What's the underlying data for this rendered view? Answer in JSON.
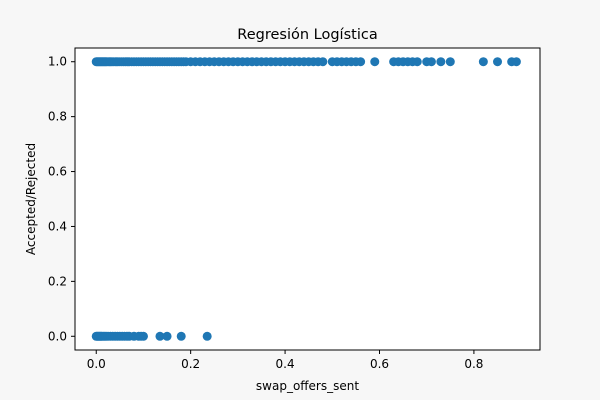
{
  "chart_data": {
    "type": "scatter",
    "title": "Regresión Logística",
    "xlabel": "swap_offers_sent",
    "ylabel": "Accepted/Rejected",
    "xlim": [
      -0.045,
      0.94
    ],
    "ylim": [
      -0.05,
      1.05
    ],
    "xticks": [
      0.0,
      0.2,
      0.4,
      0.6,
      0.8
    ],
    "xtick_labels": [
      "0.0",
      "0.2",
      "0.4",
      "0.6",
      "0.8"
    ],
    "yticks": [
      0.0,
      0.2,
      0.4,
      0.6,
      0.8,
      1.0
    ],
    "ytick_labels": [
      "0.0",
      "0.2",
      "0.4",
      "0.6",
      "0.8",
      "1.0"
    ],
    "grid": false,
    "point_color": "#1f77b4",
    "x": [
      0.0,
      0.002,
      0.004,
      0.006,
      0.008,
      0.01,
      0.012,
      0.014,
      0.016,
      0.018,
      0.02,
      0.022,
      0.025,
      0.028,
      0.03,
      0.033,
      0.036,
      0.04,
      0.043,
      0.046,
      0.05,
      0.054,
      0.058,
      0.062,
      0.066,
      0.07,
      0.075,
      0.08,
      0.085,
      0.09,
      0.095,
      0.1,
      0.105,
      0.11,
      0.115,
      0.12,
      0.125,
      0.13,
      0.135,
      0.14,
      0.145,
      0.15,
      0.155,
      0.16,
      0.165,
      0.17,
      0.175,
      0.18,
      0.185,
      0.19,
      0.2,
      0.21,
      0.22,
      0.23,
      0.24,
      0.25,
      0.26,
      0.27,
      0.28,
      0.29,
      0.3,
      0.31,
      0.32,
      0.33,
      0.34,
      0.35,
      0.36,
      0.37,
      0.38,
      0.39,
      0.4,
      0.41,
      0.42,
      0.43,
      0.44,
      0.45,
      0.46,
      0.47,
      0.48,
      0.5,
      0.51,
      0.52,
      0.53,
      0.54,
      0.55,
      0.56,
      0.59,
      0.63,
      0.64,
      0.65,
      0.66,
      0.67,
      0.68,
      0.7,
      0.71,
      0.73,
      0.75,
      0.82,
      0.85,
      0.88,
      0.89,
      0.0,
      0.002,
      0.004,
      0.006,
      0.008,
      0.01,
      0.012,
      0.015,
      0.018,
      0.021,
      0.025,
      0.03,
      0.035,
      0.04,
      0.045,
      0.05,
      0.055,
      0.06,
      0.065,
      0.07,
      0.08,
      0.09,
      0.095,
      0.1,
      0.135,
      0.15,
      0.18,
      0.235
    ],
    "y": [
      1,
      1,
      1,
      1,
      1,
      1,
      1,
      1,
      1,
      1,
      1,
      1,
      1,
      1,
      1,
      1,
      1,
      1,
      1,
      1,
      1,
      1,
      1,
      1,
      1,
      1,
      1,
      1,
      1,
      1,
      1,
      1,
      1,
      1,
      1,
      1,
      1,
      1,
      1,
      1,
      1,
      1,
      1,
      1,
      1,
      1,
      1,
      1,
      1,
      1,
      1,
      1,
      1,
      1,
      1,
      1,
      1,
      1,
      1,
      1,
      1,
      1,
      1,
      1,
      1,
      1,
      1,
      1,
      1,
      1,
      1,
      1,
      1,
      1,
      1,
      1,
      1,
      1,
      1,
      1,
      1,
      1,
      1,
      1,
      1,
      1,
      1,
      1,
      1,
      1,
      1,
      1,
      1,
      1,
      1,
      1,
      1,
      1,
      1,
      1,
      1,
      0,
      0,
      0,
      0,
      0,
      0,
      0,
      0,
      0,
      0,
      0,
      0,
      0,
      0,
      0,
      0,
      0,
      0,
      0,
      0,
      0,
      0,
      0,
      0,
      0,
      0,
      0,
      0
    ]
  }
}
